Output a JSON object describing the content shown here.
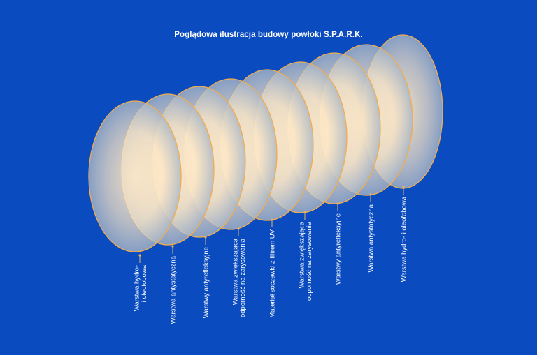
{
  "title": "Poglądowa ilustracja budowy powłoki S.P.A.R.K.",
  "colors": {
    "background": "#0a4bbf",
    "lens_stroke": "#f2ad4e",
    "lens_center": "#ffe9c6",
    "lens_edge": "#a9b6c6",
    "connector": "#e8b360"
  },
  "layers": [
    {
      "label": "Warstwa hydro- i oleofobowa",
      "lines": [
        "Warstwa hydro-",
        "i oleofobowa"
      ]
    },
    {
      "label": "Warstwa antystatyczna",
      "lines": [
        "Warstwa antystatyczna"
      ]
    },
    {
      "label": "Warstwy antyrefleksyjne",
      "lines": [
        "Warstwy antyrefleksyjne"
      ]
    },
    {
      "label": "Warstwa zwiększająca odporność na zarysowania",
      "lines": [
        "Warstwa zwiększająca",
        "odporność na zarysowania"
      ]
    },
    {
      "label": "Materiał soczewki z filtrem UV",
      "lines": [
        "Materiał soczewki z filtrem UV"
      ]
    },
    {
      "label": "Warstwa zwiększająca odporność na zarysowania",
      "lines": [
        "Warstwa zwiększająca",
        "odporność na zarysowania"
      ]
    },
    {
      "label": "Warstwy antyrefleksyjne",
      "lines": [
        "Warstwy antyrefleksyjne"
      ]
    },
    {
      "label": "Warstwa antystatyczna",
      "lines": [
        "Warstwa antystatyczna"
      ]
    },
    {
      "label": "Warstwa hydro- i oleofobowa",
      "lines": [
        "Warstwa hydro- i oleofobowa"
      ]
    }
  ]
}
